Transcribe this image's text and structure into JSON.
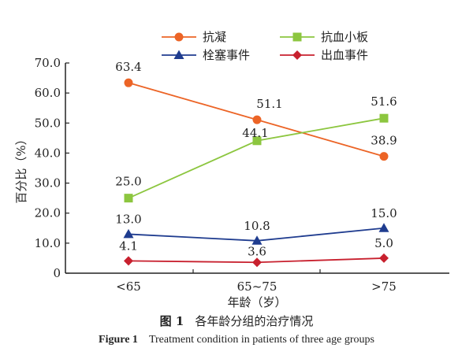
{
  "chart_data": {
    "type": "line",
    "categories": [
      "<65",
      "65~75",
      ">75"
    ],
    "xlabel": "年龄（岁）",
    "ylabel": "百分比（%）",
    "ylim": [
      0,
      70
    ],
    "yticks": [
      "0",
      "10.0",
      "20.0",
      "30.0",
      "40.0",
      "50.0",
      "60.0",
      "70.0"
    ],
    "grid": false,
    "legend": "top",
    "series": [
      {
        "name": "抗凝",
        "values": [
          63.4,
          51.1,
          38.9
        ],
        "labels": [
          "63.4",
          "51.1",
          "38.9"
        ],
        "color": "#ec6426",
        "marker": "circle"
      },
      {
        "name": "抗血小板",
        "values": [
          25.0,
          44.1,
          51.6
        ],
        "labels": [
          "25.0",
          "44.1",
          "51.6"
        ],
        "color": "#8cc63f",
        "marker": "square"
      },
      {
        "name": "栓塞事件",
        "values": [
          13.0,
          10.8,
          15.0
        ],
        "labels": [
          "13.0",
          "10.8",
          "15.0"
        ],
        "color": "#1f3c8f",
        "marker": "triangle"
      },
      {
        "name": "出血事件",
        "values": [
          4.1,
          3.6,
          5.0
        ],
        "labels": [
          "4.1",
          "3.6",
          "5.0"
        ],
        "color": "#c8202e",
        "marker": "diamond"
      }
    ]
  },
  "caption": {
    "cn_number": "图 1",
    "cn_text": "各年龄分组的治疗情况",
    "en_number": "Figure 1",
    "en_text": "Treatment condition in patients of three age groups"
  }
}
